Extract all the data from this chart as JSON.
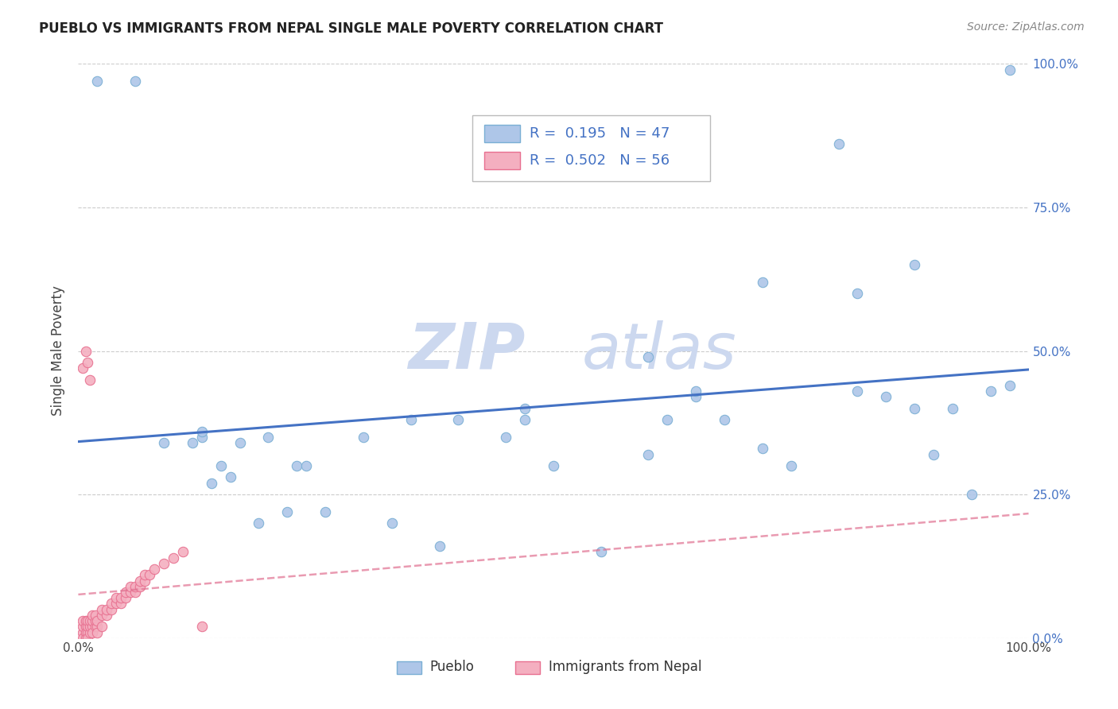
{
  "title": "PUEBLO VS IMMIGRANTS FROM NEPAL SINGLE MALE POVERTY CORRELATION CHART",
  "source": "Source: ZipAtlas.com",
  "ylabel": "Single Male Poverty",
  "xlim": [
    0,
    1
  ],
  "ylim": [
    0,
    1
  ],
  "xtick_positions": [
    0.0,
    1.0
  ],
  "xtick_labels": [
    "0.0%",
    "100.0%"
  ],
  "ytick_vals": [
    0.0,
    0.25,
    0.5,
    0.75,
    1.0
  ],
  "ytick_labels": [
    "0.0%",
    "25.0%",
    "50.0%",
    "75.0%",
    "100.0%"
  ],
  "grid_color": "#cccccc",
  "background_color": "#ffffff",
  "pueblo_color": "#aec6e8",
  "nepal_color": "#f4afc0",
  "pueblo_edge": "#7aafd4",
  "nepal_edge": "#e87090",
  "trend_blue": "#4472c4",
  "trend_pink": "#e07090",
  "legend_blue_color": "#4472c4",
  "R_pueblo": 0.195,
  "N_pueblo": 47,
  "R_nepal": 0.502,
  "N_nepal": 56,
  "pueblo_x": [
    0.02,
    0.06,
    0.09,
    0.12,
    0.13,
    0.13,
    0.14,
    0.15,
    0.16,
    0.17,
    0.19,
    0.2,
    0.22,
    0.23,
    0.24,
    0.26,
    0.3,
    0.33,
    0.35,
    0.38,
    0.4,
    0.45,
    0.47,
    0.47,
    0.5,
    0.55,
    0.6,
    0.62,
    0.65,
    0.68,
    0.72,
    0.75,
    0.8,
    0.82,
    0.85,
    0.88,
    0.9,
    0.92,
    0.94,
    0.96,
    0.98,
    0.6,
    0.65,
    0.72,
    0.82,
    0.88,
    0.98
  ],
  "pueblo_y": [
    0.97,
    0.97,
    0.34,
    0.34,
    0.35,
    0.36,
    0.27,
    0.3,
    0.28,
    0.34,
    0.2,
    0.35,
    0.22,
    0.3,
    0.3,
    0.22,
    0.35,
    0.2,
    0.38,
    0.16,
    0.38,
    0.35,
    0.4,
    0.38,
    0.3,
    0.15,
    0.32,
    0.38,
    0.42,
    0.38,
    0.33,
    0.3,
    0.86,
    0.6,
    0.42,
    0.4,
    0.32,
    0.4,
    0.25,
    0.43,
    0.99,
    0.49,
    0.43,
    0.62,
    0.43,
    0.65,
    0.44
  ],
  "nepal_x": [
    0.005,
    0.005,
    0.005,
    0.005,
    0.005,
    0.008,
    0.008,
    0.008,
    0.008,
    0.008,
    0.01,
    0.01,
    0.01,
    0.01,
    0.01,
    0.012,
    0.012,
    0.012,
    0.012,
    0.015,
    0.015,
    0.015,
    0.015,
    0.018,
    0.018,
    0.018,
    0.02,
    0.02,
    0.02,
    0.025,
    0.025,
    0.025,
    0.03,
    0.03,
    0.035,
    0.035,
    0.04,
    0.04,
    0.045,
    0.045,
    0.05,
    0.05,
    0.055,
    0.055,
    0.06,
    0.06,
    0.065,
    0.065,
    0.07,
    0.07,
    0.075,
    0.08,
    0.09,
    0.1,
    0.11,
    0.13
  ],
  "nepal_y": [
    0.47,
    0.01,
    0.02,
    0.03,
    0.0,
    0.5,
    0.02,
    0.03,
    0.01,
    0.0,
    0.48,
    0.01,
    0.02,
    0.03,
    0.0,
    0.45,
    0.01,
    0.02,
    0.03,
    0.02,
    0.03,
    0.04,
    0.01,
    0.02,
    0.03,
    0.04,
    0.02,
    0.03,
    0.01,
    0.04,
    0.05,
    0.02,
    0.04,
    0.05,
    0.05,
    0.06,
    0.06,
    0.07,
    0.06,
    0.07,
    0.07,
    0.08,
    0.08,
    0.09,
    0.08,
    0.09,
    0.09,
    0.1,
    0.1,
    0.11,
    0.11,
    0.12,
    0.13,
    0.14,
    0.15,
    0.02
  ],
  "watermark_zip": "ZIP",
  "watermark_atlas": "atlas",
  "watermark_color": "#ccd8ef",
  "marker_size": 80
}
